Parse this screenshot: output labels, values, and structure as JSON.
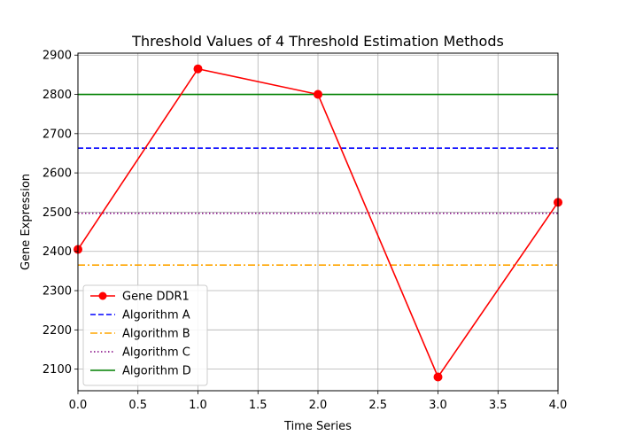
{
  "chart_data": {
    "type": "line",
    "title": "Threshold Values of 4 Threshold Estimation Methods",
    "xlabel": "Time Series",
    "ylabel": "Gene Expression",
    "xlim": [
      0.0,
      4.0
    ],
    "ylim": [
      2045,
      2905
    ],
    "x_ticks": [
      "0.0",
      "0.5",
      "1.0",
      "1.5",
      "2.0",
      "2.5",
      "3.0",
      "3.5",
      "4.0"
    ],
    "y_ticks": [
      "2100",
      "2200",
      "2300",
      "2400",
      "2500",
      "2600",
      "2700",
      "2800",
      "2900"
    ],
    "grid": true,
    "legend_position": "lower-left",
    "series": [
      {
        "name": "Gene DDR1",
        "kind": "line-marker",
        "color": "#ff0000",
        "x": [
          0,
          1,
          2,
          3,
          4
        ],
        "y": [
          2405,
          2865,
          2800,
          2080,
          2525
        ]
      },
      {
        "name": "Algorithm A",
        "kind": "hline",
        "color": "#0000ff",
        "style": "dashed",
        "value": 2663
      },
      {
        "name": "Algorithm B",
        "kind": "hline",
        "color": "#ffa500",
        "style": "dashdot",
        "value": 2365
      },
      {
        "name": "Algorithm C",
        "kind": "hline",
        "color": "#800080",
        "style": "dotted",
        "value": 2497
      },
      {
        "name": "Algorithm D",
        "kind": "hline",
        "color": "#008000",
        "style": "solid",
        "value": 2800
      }
    ]
  }
}
